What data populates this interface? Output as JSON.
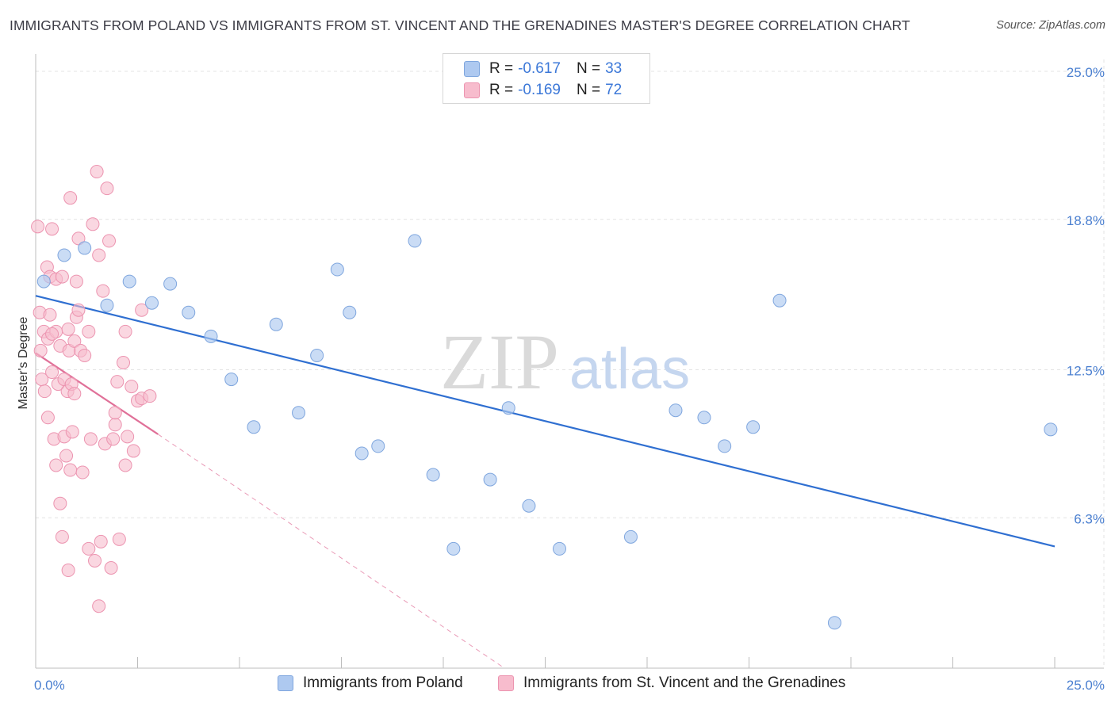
{
  "title": "IMMIGRANTS FROM POLAND VS IMMIGRANTS FROM ST. VINCENT AND THE GRENADINES MASTER'S DEGREE CORRELATION CHART",
  "source": "Source: ZipAtlas.com",
  "watermark": {
    "zip": "ZIP",
    "atlas": "atlas"
  },
  "legend": {
    "poland": {
      "r_label": "R =",
      "r_value": "-0.617",
      "n_label": "N =",
      "n_value": "33"
    },
    "stvincent": {
      "r_label": "R =",
      "r_value": "-0.169",
      "n_label": "N =",
      "n_value": "72"
    }
  },
  "bottom_legend": {
    "poland": "Immigrants from Poland",
    "stvincent": "Immigrants from St. Vincent and the Grenadines"
  },
  "colors": {
    "poland_fill": "#aec9f0",
    "poland_stroke": "#7fa6de",
    "poland_line": "#2f6fd1",
    "stvincent_fill": "#f7bccd",
    "stvincent_stroke": "#ec94b0",
    "stvincent_line": "#e07098",
    "grid": "#e3e3e3",
    "tick_label": "#4a7fd0"
  },
  "chart_data": {
    "type": "scatter",
    "title": "IMMIGRANTS FROM POLAND VS IMMIGRANTS FROM ST. VINCENT AND THE GRENADINES MASTER'S DEGREE CORRELATION CHART",
    "xlabel": "",
    "ylabel": "Master's Degree",
    "xlim": [
      0,
      25
    ],
    "ylim": [
      0,
      25.5
    ],
    "x_tick_labels": [
      "0.0%",
      "25.0%"
    ],
    "y_ticks": [
      6.3,
      12.5,
      18.8,
      25.0
    ],
    "y_tick_labels": [
      "6.3%",
      "12.5%",
      "18.8%",
      "25.0%"
    ],
    "series": [
      {
        "name": "Immigrants from Poland",
        "r": -0.617,
        "n": 33,
        "points": [
          [
            0.2,
            16.2
          ],
          [
            0.7,
            17.3
          ],
          [
            1.2,
            17.6
          ],
          [
            1.75,
            15.2
          ],
          [
            2.3,
            16.2
          ],
          [
            2.85,
            15.3
          ],
          [
            3.3,
            16.1
          ],
          [
            3.75,
            14.9
          ],
          [
            4.3,
            13.9
          ],
          [
            4.8,
            12.1
          ],
          [
            5.35,
            10.1
          ],
          [
            5.9,
            14.4
          ],
          [
            6.45,
            10.7
          ],
          [
            6.9,
            13.1
          ],
          [
            7.4,
            16.7
          ],
          [
            7.7,
            14.9
          ],
          [
            8.0,
            9.0
          ],
          [
            8.4,
            9.3
          ],
          [
            9.3,
            17.9
          ],
          [
            9.75,
            8.1
          ],
          [
            10.25,
            5.0
          ],
          [
            11.15,
            7.9
          ],
          [
            11.6,
            10.9
          ],
          [
            12.1,
            6.8
          ],
          [
            12.85,
            5.0
          ],
          [
            14.6,
            5.5
          ],
          [
            15.7,
            10.8
          ],
          [
            16.4,
            10.5
          ],
          [
            16.9,
            9.3
          ],
          [
            17.6,
            10.1
          ],
          [
            18.25,
            15.4
          ],
          [
            19.6,
            1.9
          ],
          [
            24.9,
            10.0
          ]
        ],
        "trend": {
          "x0": 0,
          "y0": 15.6,
          "x1": 25,
          "y1": 5.1
        }
      },
      {
        "name": "Immigrants from St. Vincent and the Grenadines",
        "r": -0.169,
        "n": 72,
        "points": [
          [
            0.05,
            18.5
          ],
          [
            0.1,
            14.9
          ],
          [
            0.12,
            13.3
          ],
          [
            0.15,
            12.1
          ],
          [
            0.2,
            14.1
          ],
          [
            0.22,
            11.6
          ],
          [
            0.28,
            16.8
          ],
          [
            0.3,
            10.5
          ],
          [
            0.3,
            13.8
          ],
          [
            0.35,
            16.4
          ],
          [
            0.35,
            14.8
          ],
          [
            0.4,
            18.4
          ],
          [
            0.4,
            12.4
          ],
          [
            0.45,
            9.6
          ],
          [
            0.5,
            16.3
          ],
          [
            0.5,
            14.1
          ],
          [
            0.5,
            8.5
          ],
          [
            0.55,
            11.9
          ],
          [
            0.6,
            13.5
          ],
          [
            0.6,
            6.9
          ],
          [
            0.65,
            16.4
          ],
          [
            0.65,
            5.5
          ],
          [
            0.7,
            9.7
          ],
          [
            0.7,
            12.1
          ],
          [
            0.75,
            8.9
          ],
          [
            0.78,
            11.6
          ],
          [
            0.8,
            14.2
          ],
          [
            0.8,
            4.1
          ],
          [
            0.82,
            13.3
          ],
          [
            0.85,
            19.7
          ],
          [
            0.85,
            8.3
          ],
          [
            0.88,
            11.9
          ],
          [
            0.9,
            9.9
          ],
          [
            0.95,
            11.5
          ],
          [
            0.95,
            13.7
          ],
          [
            1.0,
            16.2
          ],
          [
            1.0,
            14.7
          ],
          [
            1.05,
            15.0
          ],
          [
            1.05,
            18.0
          ],
          [
            1.1,
            13.3
          ],
          [
            1.15,
            8.2
          ],
          [
            1.2,
            13.1
          ],
          [
            1.3,
            14.1
          ],
          [
            1.3,
            5.0
          ],
          [
            1.35,
            9.6
          ],
          [
            1.4,
            18.6
          ],
          [
            1.45,
            4.5
          ],
          [
            1.5,
            20.8
          ],
          [
            1.55,
            2.6
          ],
          [
            1.55,
            17.3
          ],
          [
            1.6,
            5.3
          ],
          [
            1.65,
            15.8
          ],
          [
            1.7,
            9.4
          ],
          [
            1.75,
            20.1
          ],
          [
            1.8,
            17.9
          ],
          [
            1.85,
            4.2
          ],
          [
            1.9,
            9.6
          ],
          [
            1.95,
            10.2
          ],
          [
            1.95,
            10.7
          ],
          [
            2.0,
            12.0
          ],
          [
            2.05,
            5.4
          ],
          [
            2.15,
            12.8
          ],
          [
            2.2,
            14.1
          ],
          [
            2.2,
            8.5
          ],
          [
            2.25,
            9.7
          ],
          [
            2.35,
            11.8
          ],
          [
            2.4,
            9.1
          ],
          [
            2.5,
            11.2
          ],
          [
            2.6,
            11.3
          ],
          [
            2.8,
            11.4
          ],
          [
            2.6,
            15.0
          ],
          [
            0.4,
            14.0
          ]
        ],
        "trend": {
          "x0": 0,
          "y0": 13.2,
          "x1": 3.0,
          "y1": 9.8
        },
        "trend_dashed": {
          "x0": 3.0,
          "y0": 9.8,
          "x1": 11.5,
          "y1": 0
        }
      }
    ]
  }
}
